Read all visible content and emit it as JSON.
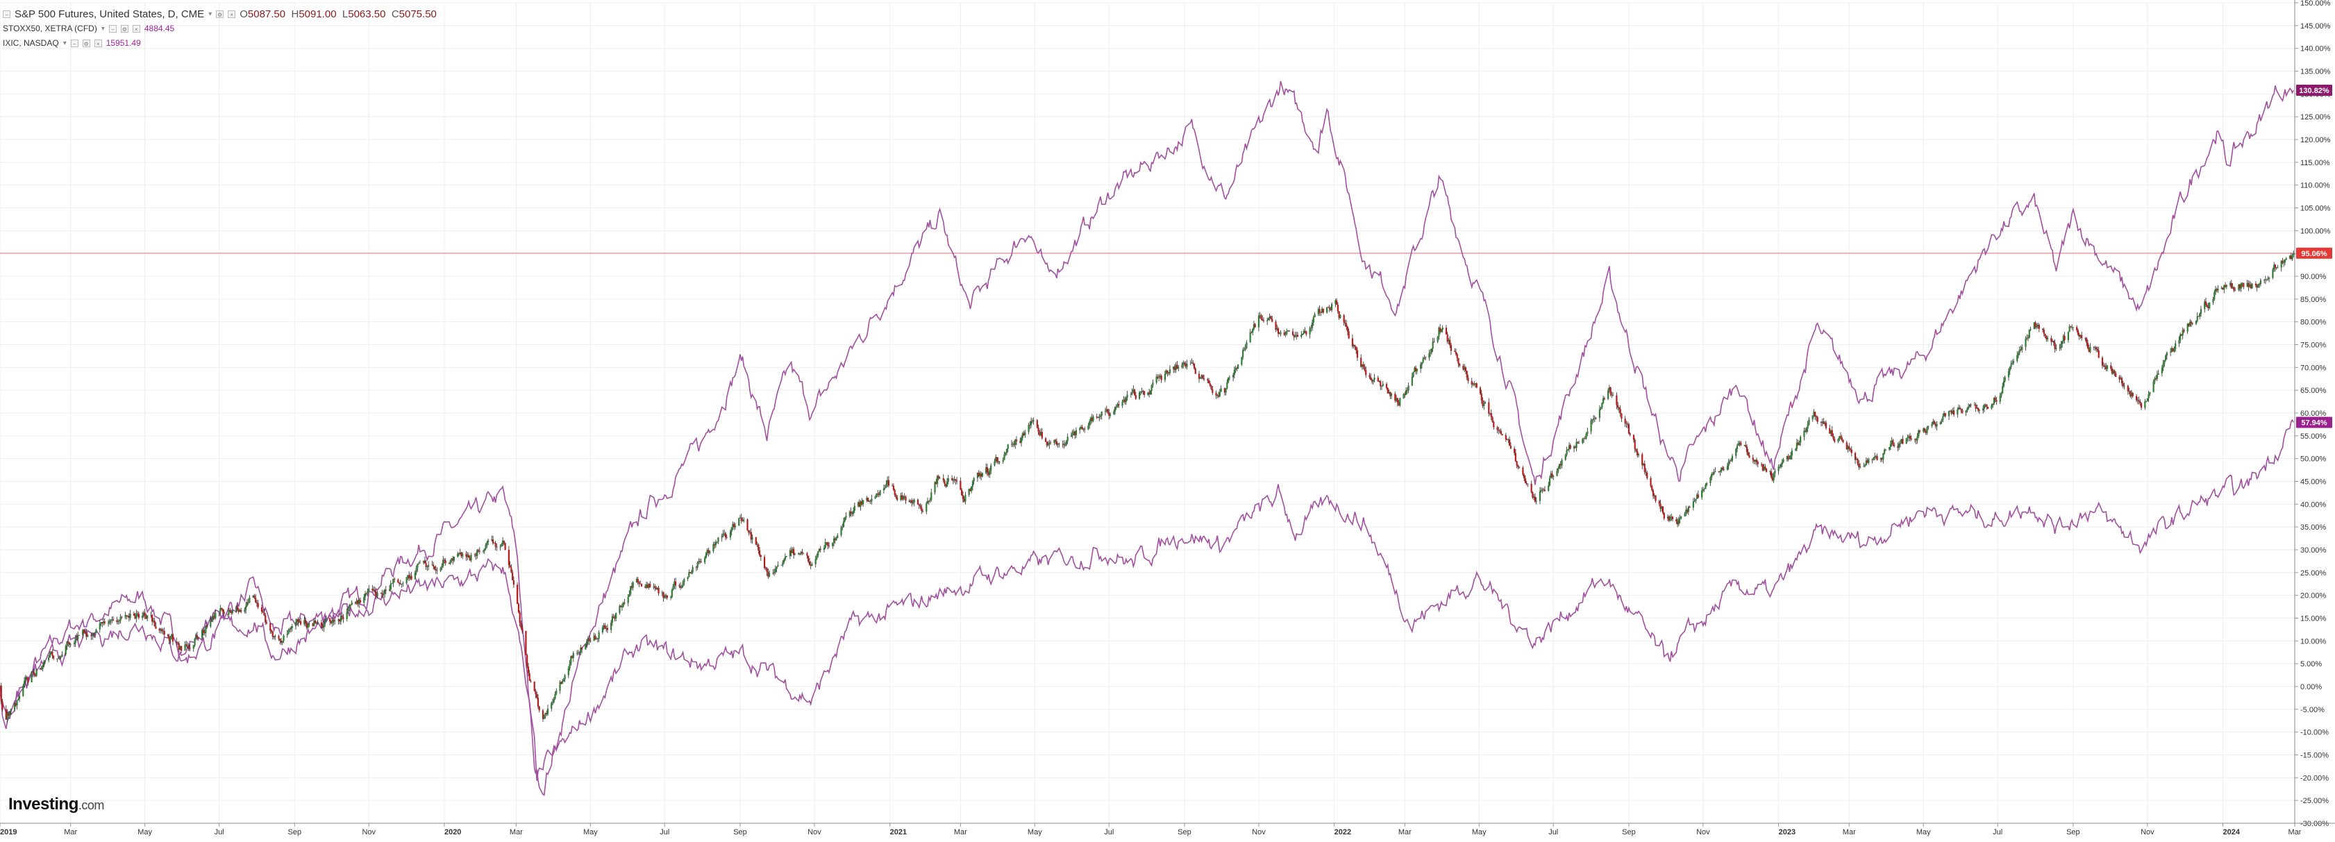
{
  "legend": {
    "main": {
      "title": "S&P 500 Futures, United States, D, CME",
      "open_label": "O",
      "open": "5087.50",
      "high_label": "H",
      "high": "5091.00",
      "low_label": "L",
      "low": "5063.50",
      "close_label": "C",
      "close": "5075.50"
    },
    "compare": [
      {
        "name": "STOXX50, XETRA (CFD)",
        "value": "4884.45"
      },
      {
        "name": "IXIC, NASDAQ",
        "value": "15951.49"
      }
    ]
  },
  "logo": {
    "text": "Investing",
    "suffix": ".com"
  },
  "colors": {
    "up": "#2e7d32",
    "down": "#b71c1c",
    "wick": "#222222",
    "nasdaq": "#a0509f",
    "stoxx": "#a0509f",
    "grid": "#eeeeee",
    "axis_text": "#333333",
    "hline": "#e8a0a0",
    "badge_nasdaq": "#8b1a6b",
    "badge_spx": "#e53935",
    "badge_stoxx": "#9c1f8f"
  },
  "chart_data": {
    "type": "line",
    "chart_style": "candlestick + compare lines",
    "scale": "percent change from first bar",
    "x_range": [
      "2019-01-02",
      "2024-03-01"
    ],
    "ylim": [
      -30,
      150
    ],
    "y_tick_step": 5,
    "y_ticks": [
      "150.00%",
      "145.00%",
      "140.00%",
      "135.00%",
      "130.00%",
      "125.00%",
      "120.00%",
      "115.00%",
      "110.00%",
      "105.00%",
      "100.00%",
      "95.00%",
      "90.00%",
      "85.00%",
      "80.00%",
      "75.00%",
      "70.00%",
      "65.00%",
      "60.00%",
      "55.00%",
      "50.00%",
      "45.00%",
      "40.00%",
      "35.00%",
      "30.00%",
      "25.00%",
      "20.00%",
      "15.00%",
      "10.00%",
      "5.00%",
      "0.00%",
      "-5.00%",
      "-10.00%",
      "-15.00%",
      "-20.00%",
      "-25.00%",
      "-30.00%"
    ],
    "x_ticks": [
      {
        "date": "2019-01-02",
        "label": "2019",
        "bold": true
      },
      {
        "date": "2019-03-01",
        "label": "Mar"
      },
      {
        "date": "2019-05-01",
        "label": "May"
      },
      {
        "date": "2019-07-01",
        "label": "Jul"
      },
      {
        "date": "2019-09-01",
        "label": "Sep"
      },
      {
        "date": "2019-11-01",
        "label": "Nov"
      },
      {
        "date": "2020-01-02",
        "label": "2020",
        "bold": true
      },
      {
        "date": "2020-03-01",
        "label": "Mar"
      },
      {
        "date": "2020-05-01",
        "label": "May"
      },
      {
        "date": "2020-07-01",
        "label": "Jul"
      },
      {
        "date": "2020-09-01",
        "label": "Sep"
      },
      {
        "date": "2020-11-01",
        "label": "Nov"
      },
      {
        "date": "2021-01-02",
        "label": "2021",
        "bold": true
      },
      {
        "date": "2021-03-01",
        "label": "Mar"
      },
      {
        "date": "2021-05-01",
        "label": "May"
      },
      {
        "date": "2021-07-01",
        "label": "Jul"
      },
      {
        "date": "2021-09-01",
        "label": "Sep"
      },
      {
        "date": "2021-11-01",
        "label": "Nov"
      },
      {
        "date": "2022-01-02",
        "label": "2022",
        "bold": true
      },
      {
        "date": "2022-03-01",
        "label": "Mar"
      },
      {
        "date": "2022-05-01",
        "label": "May"
      },
      {
        "date": "2022-07-01",
        "label": "Jul"
      },
      {
        "date": "2022-09-01",
        "label": "Sep"
      },
      {
        "date": "2022-11-01",
        "label": "Nov"
      },
      {
        "date": "2023-01-02",
        "label": "2023",
        "bold": true
      },
      {
        "date": "2023-03-01",
        "label": "Mar"
      },
      {
        "date": "2023-05-01",
        "label": "May"
      },
      {
        "date": "2023-07-01",
        "label": "Jul"
      },
      {
        "date": "2023-09-01",
        "label": "Sep"
      },
      {
        "date": "2023-11-01",
        "label": "Nov"
      },
      {
        "date": "2024-01-02",
        "label": "2024",
        "bold": true
      },
      {
        "date": "2024-03-01",
        "label": "Mar"
      }
    ],
    "horizontal_line": {
      "y": 95.06
    },
    "price_badges": [
      {
        "series": "IXIC, NASDAQ",
        "y": 130.82,
        "label": "130.82%"
      },
      {
        "series": "S&P 500 Futures",
        "y": 95.06,
        "label": "95.06%"
      },
      {
        "series": "STOXX50, XETRA (CFD)",
        "y": 57.94,
        "label": "57.94%"
      }
    ],
    "series": [
      {
        "id": "spx",
        "name": "S&P 500 Futures, United States, D, CME",
        "style": "candles",
        "anchors": [
          [
            "2019-01-02",
            0
          ],
          [
            "2019-01-05",
            -8
          ],
          [
            "2019-02-01",
            4
          ],
          [
            "2019-03-01",
            10
          ],
          [
            "2019-04-01",
            14
          ],
          [
            "2019-05-01",
            16
          ],
          [
            "2019-05-31",
            8
          ],
          [
            "2019-06-30",
            16
          ],
          [
            "2019-07-31",
            19
          ],
          [
            "2019-08-15",
            11
          ],
          [
            "2019-09-30",
            15
          ],
          [
            "2019-10-31",
            19
          ],
          [
            "2019-11-30",
            24
          ],
          [
            "2019-12-31",
            28
          ],
          [
            "2020-02-19",
            31
          ],
          [
            "2020-03-01",
            21
          ],
          [
            "2020-03-12",
            2
          ],
          [
            "2020-03-23",
            -8
          ],
          [
            "2020-04-15",
            6
          ],
          [
            "2020-05-15",
            13
          ],
          [
            "2020-06-08",
            25
          ],
          [
            "2020-06-30",
            20
          ],
          [
            "2020-07-31",
            27
          ],
          [
            "2020-09-02",
            37
          ],
          [
            "2020-09-25",
            25
          ],
          [
            "2020-10-12",
            30
          ],
          [
            "2020-10-30",
            27
          ],
          [
            "2020-11-30",
            38
          ],
          [
            "2020-12-31",
            44
          ],
          [
            "2021-01-29",
            40
          ],
          [
            "2021-02-12",
            47
          ],
          [
            "2021-03-04",
            42
          ],
          [
            "2021-04-30",
            57
          ],
          [
            "2021-05-12",
            53
          ],
          [
            "2021-06-30",
            60
          ],
          [
            "2021-07-30",
            65
          ],
          [
            "2021-09-02",
            71
          ],
          [
            "2021-10-04",
            64
          ],
          [
            "2021-11-02",
            81
          ],
          [
            "2021-11-30",
            76
          ],
          [
            "2022-01-03",
            84
          ],
          [
            "2022-01-27",
            69
          ],
          [
            "2022-02-24",
            62
          ],
          [
            "2022-03-29",
            79
          ],
          [
            "2022-05-20",
            55
          ],
          [
            "2022-06-16",
            41
          ],
          [
            "2022-08-16",
            64
          ],
          [
            "2022-09-30",
            38
          ],
          [
            "2022-10-13",
            37
          ],
          [
            "2022-11-30",
            53
          ],
          [
            "2022-12-28",
            46
          ],
          [
            "2023-02-02",
            59
          ],
          [
            "2023-03-13",
            49
          ],
          [
            "2023-04-30",
            56
          ],
          [
            "2023-06-30",
            64
          ],
          [
            "2023-07-31",
            81
          ],
          [
            "2023-08-18",
            73
          ],
          [
            "2023-09-01",
            79
          ],
          [
            "2023-10-27",
            61
          ],
          [
            "2023-11-30",
            77
          ],
          [
            "2023-12-28",
            87
          ],
          [
            "2024-02-01",
            89
          ],
          [
            "2024-02-29",
            95.06
          ]
        ]
      },
      {
        "id": "nasdaq",
        "name": "IXIC, NASDAQ",
        "style": "line",
        "anchors": [
          [
            "2019-01-02",
            0
          ],
          [
            "2019-01-05",
            -9
          ],
          [
            "2019-02-01",
            5
          ],
          [
            "2019-03-01",
            13
          ],
          [
            "2019-04-30",
            20
          ],
          [
            "2019-06-03",
            8
          ],
          [
            "2019-06-30",
            16
          ],
          [
            "2019-07-31",
            21
          ],
          [
            "2019-08-15",
            12
          ],
          [
            "2019-09-30",
            16
          ],
          [
            "2019-10-31",
            21
          ],
          [
            "2019-11-30",
            28
          ],
          [
            "2019-12-31",
            33
          ],
          [
            "2020-02-19",
            42
          ],
          [
            "2020-03-01",
            31
          ],
          [
            "2020-03-16",
            -18
          ],
          [
            "2020-03-23",
            -22
          ],
          [
            "2020-04-30",
            12
          ],
          [
            "2020-06-08",
            36
          ],
          [
            "2020-07-31",
            53
          ],
          [
            "2020-09-02",
            72
          ],
          [
            "2020-09-23",
            55
          ],
          [
            "2020-10-12",
            70
          ],
          [
            "2020-10-30",
            60
          ],
          [
            "2020-12-31",
            86
          ],
          [
            "2021-02-12",
            103
          ],
          [
            "2021-03-08",
            83
          ],
          [
            "2021-04-26",
            101
          ],
          [
            "2021-05-12",
            89
          ],
          [
            "2021-06-30",
            108
          ],
          [
            "2021-09-07",
            122
          ],
          [
            "2021-10-04",
            107
          ],
          [
            "2021-11-19",
            132
          ],
          [
            "2021-12-20",
            119
          ],
          [
            "2021-12-27",
            127
          ],
          [
            "2022-01-27",
            94
          ],
          [
            "2022-02-23",
            84
          ],
          [
            "2022-03-29",
            111
          ],
          [
            "2022-05-20",
            72
          ],
          [
            "2022-06-16",
            44
          ],
          [
            "2022-08-16",
            89
          ],
          [
            "2022-09-30",
            52
          ],
          [
            "2022-10-13",
            47
          ],
          [
            "2022-11-30",
            67
          ],
          [
            "2022-12-28",
            48
          ],
          [
            "2023-02-02",
            78
          ],
          [
            "2023-03-13",
            64
          ],
          [
            "2023-04-30",
            72
          ],
          [
            "2023-06-30",
            100
          ],
          [
            "2023-07-31",
            106
          ],
          [
            "2023-08-18",
            91
          ],
          [
            "2023-09-01",
            103
          ],
          [
            "2023-10-27",
            82
          ],
          [
            "2023-11-30",
            107
          ],
          [
            "2023-12-28",
            122
          ],
          [
            "2024-01-05",
            115
          ],
          [
            "2024-02-01",
            124
          ],
          [
            "2024-02-15",
            131
          ],
          [
            "2024-02-29",
            130.82
          ]
        ]
      },
      {
        "id": "stoxx",
        "name": "STOXX50, XETRA (CFD)",
        "style": "line",
        "anchors": [
          [
            "2019-01-02",
            0
          ],
          [
            "2019-01-05",
            -6
          ],
          [
            "2019-02-01",
            3
          ],
          [
            "2019-03-01",
            9
          ],
          [
            "2019-04-30",
            14
          ],
          [
            "2019-06-03",
            6
          ],
          [
            "2019-06-30",
            12
          ],
          [
            "2019-07-31",
            14
          ],
          [
            "2019-08-15",
            7
          ],
          [
            "2019-09-30",
            14
          ],
          [
            "2019-10-31",
            18
          ],
          [
            "2019-11-30",
            21
          ],
          [
            "2019-12-31",
            22
          ],
          [
            "2020-02-19",
            26
          ],
          [
            "2020-03-01",
            15
          ],
          [
            "2020-03-16",
            -14
          ],
          [
            "2020-03-18",
            -20
          ],
          [
            "2020-04-30",
            -6
          ],
          [
            "2020-06-08",
            9
          ],
          [
            "2020-07-31",
            5
          ],
          [
            "2020-09-02",
            7
          ],
          [
            "2020-10-30",
            -3
          ],
          [
            "2020-11-30",
            13
          ],
          [
            "2020-12-31",
            16
          ],
          [
            "2021-03-31",
            25
          ],
          [
            "2021-06-30",
            30
          ],
          [
            "2021-07-19",
            27
          ],
          [
            "2021-08-31",
            34
          ],
          [
            "2021-09-30",
            31
          ],
          [
            "2021-11-17",
            42
          ],
          [
            "2021-12-01",
            34
          ],
          [
            "2021-12-31",
            41
          ],
          [
            "2022-01-27",
            36
          ],
          [
            "2022-03-07",
            14
          ],
          [
            "2022-04-29",
            24
          ],
          [
            "2022-06-16",
            10
          ],
          [
            "2022-08-12",
            24
          ],
          [
            "2022-09-30",
            6
          ],
          [
            "2022-11-30",
            22
          ],
          [
            "2022-12-28",
            20
          ],
          [
            "2023-02-02",
            33
          ],
          [
            "2023-03-17",
            32
          ],
          [
            "2023-04-30",
            39
          ],
          [
            "2023-06-30",
            37
          ],
          [
            "2023-07-31",
            40
          ],
          [
            "2023-08-18",
            35
          ],
          [
            "2023-09-15",
            39
          ],
          [
            "2023-10-27",
            31
          ],
          [
            "2023-11-30",
            38
          ],
          [
            "2023-12-28",
            42
          ],
          [
            "2024-01-17",
            43
          ],
          [
            "2024-02-01",
            47
          ],
          [
            "2024-02-29",
            57.94
          ]
        ]
      }
    ]
  }
}
